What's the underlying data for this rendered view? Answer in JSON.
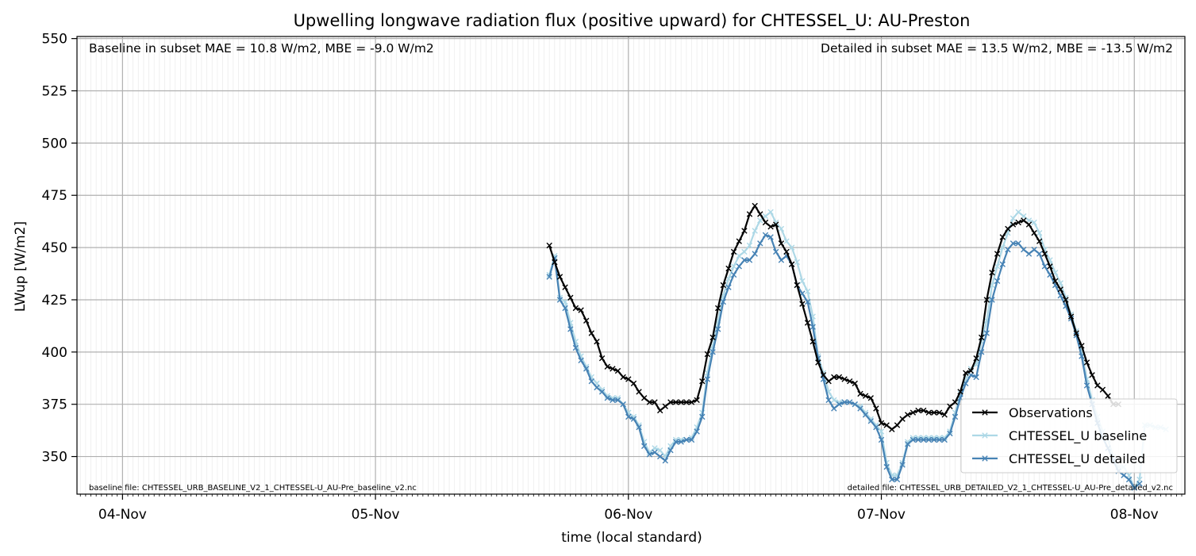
{
  "chart_data": {
    "type": "line",
    "title": "Upwelling longwave radiation flux (positive upward) for CHTESSEL_U: AU-Preston",
    "xlabel": "time (local standard)",
    "ylabel": "LWup [W/m2]",
    "xlim": [
      -0.18,
      4.2
    ],
    "ylim": [
      332,
      551
    ],
    "x_ticks": [
      {
        "value": 0,
        "label": "04-Nov"
      },
      {
        "value": 1,
        "label": "05-Nov"
      },
      {
        "value": 2,
        "label": "06-Nov"
      },
      {
        "value": 3,
        "label": "07-Nov"
      },
      {
        "value": 4,
        "label": "08-Nov"
      }
    ],
    "y_ticks": [
      350,
      375,
      400,
      425,
      450,
      475,
      500,
      525,
      550
    ],
    "x_unit_note": "days since 04-Nov 00:00, half-hourly samples",
    "grid": true,
    "legend_position": "lower-right",
    "annotations": {
      "top_left": "Baseline in subset MAE = 10.8 W/m2, MBE = -9.0 W/m2",
      "top_right": "Detailed in subset MAE = 13.5 W/m2, MBE = -13.5 W/m2",
      "bottom_left": "baseline file: CHTESSEL_URB_BASELINE_V2_1_CHTESSEL-U_AU-Pre_baseline_v2.nc",
      "bottom_right": "detailed file: CHTESSEL_URB_DETAILED_V2_1_CHTESSEL-U_AU-Pre_detailed_v2.nc"
    },
    "series": [
      {
        "name": "Observations",
        "color": "#000000",
        "x_start": 1.6875,
        "x_step": 0.0208333,
        "values": [
          451,
          443,
          436,
          431,
          426,
          421,
          420,
          415,
          409,
          405,
          397,
          393,
          392,
          391,
          388,
          387,
          385,
          381,
          378,
          376,
          376,
          372,
          374,
          376,
          376,
          376,
          376,
          376,
          377,
          386,
          399,
          407,
          421,
          432,
          440,
          448,
          453,
          458,
          466,
          470,
          466,
          462,
          460,
          461,
          452,
          448,
          442,
          432,
          423,
          414,
          405,
          395,
          389,
          386,
          388,
          388,
          387,
          386,
          385,
          380,
          379,
          378,
          373,
          366,
          365,
          363,
          365,
          368,
          370,
          371,
          372,
          372,
          371,
          371,
          371,
          370,
          374,
          376,
          381,
          390,
          391,
          397,
          407,
          425,
          438,
          447,
          455,
          459,
          461,
          462,
          463,
          461,
          457,
          453,
          447,
          441,
          434,
          430,
          425,
          417,
          409,
          403,
          395,
          389,
          384,
          382,
          379,
          375,
          375
        ]
      },
      {
        "name": "CHTESSEL_U baseline",
        "color": "#add8e6",
        "x_start": 1.6875,
        "x_step": 0.0208333,
        "values": [
          437,
          446,
          426,
          424,
          414,
          405,
          398,
          393,
          388,
          385,
          382,
          379,
          378,
          378,
          375,
          371,
          369,
          365,
          357,
          352,
          354,
          353,
          350,
          355,
          358,
          358,
          358,
          359,
          364,
          371,
          390,
          403,
          415,
          427,
          435,
          441,
          446,
          448,
          451,
          458,
          463,
          465,
          467,
          462,
          459,
          453,
          450,
          443,
          434,
          429,
          417,
          398,
          390,
          381,
          377,
          376,
          376,
          376,
          375,
          374,
          371,
          368,
          365,
          362,
          347,
          341,
          341,
          347,
          357,
          359,
          359,
          359,
          359,
          359,
          359,
          359,
          362,
          371,
          380,
          387,
          392,
          394,
          405,
          415,
          432,
          441,
          450,
          457,
          464,
          467,
          465,
          463,
          462,
          457,
          449,
          444,
          438,
          433,
          426,
          418,
          410,
          400,
          387,
          377,
          369,
          362,
          358,
          350,
          345,
          345,
          341,
          335,
          339,
          365,
          365,
          364,
          364,
          363
        ]
      },
      {
        "name": "CHTESSEL_U detailed",
        "color": "#4682b4",
        "x_start": 1.6875,
        "x_step": 0.0208333,
        "values": [
          436,
          445,
          425,
          421,
          411,
          402,
          396,
          392,
          386,
          383,
          381,
          378,
          377,
          377,
          375,
          369,
          368,
          364,
          355,
          351,
          352,
          350,
          348,
          353,
          357,
          357,
          358,
          358,
          362,
          369,
          387,
          400,
          411,
          424,
          431,
          437,
          441,
          444,
          444,
          447,
          452,
          456,
          455,
          448,
          444,
          446,
          442,
          432,
          428,
          424,
          412,
          397,
          387,
          377,
          373,
          375,
          376,
          376,
          375,
          373,
          370,
          367,
          364,
          358,
          345,
          339,
          339,
          346,
          356,
          358,
          358,
          358,
          358,
          358,
          358,
          358,
          361,
          369,
          378,
          385,
          389,
          388,
          400,
          409,
          425,
          434,
          442,
          449,
          452,
          452,
          449,
          447,
          449,
          447,
          441,
          437,
          432,
          427,
          422,
          416,
          408,
          398,
          384,
          375,
          366,
          359,
          354,
          348,
          343,
          341,
          339,
          335,
          337
        ]
      }
    ]
  }
}
